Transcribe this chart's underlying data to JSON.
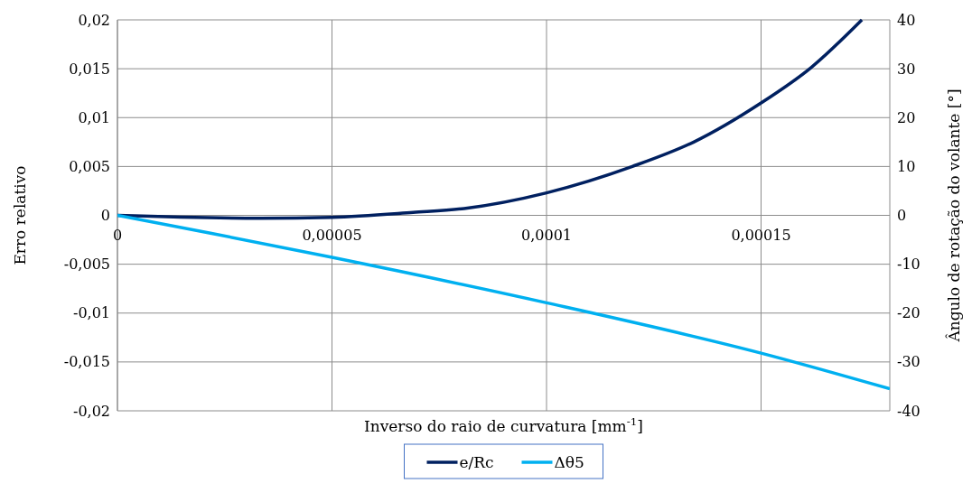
{
  "chart_data": {
    "type": "line",
    "xlabel": "Inverso do raio de curvatura [mm$^{-1}$]",
    "ylabel": "Erro relativo",
    "y2label": "Ângulo de rotação do volante [°]",
    "xlim": [
      0,
      0.00018
    ],
    "xticks": [
      0,
      {
        "value": 5e-05,
        "label": "0,00005"
      },
      {
        "value": 0.0001,
        "label": "0,0001"
      },
      {
        "value": 0.00015,
        "label": "0,00015"
      }
    ],
    "ylim": [
      -0.02,
      0.02
    ],
    "yticks": [
      {
        "value": -0.02,
        "label": "-0,02"
      },
      {
        "value": -0.015,
        "label": "-0,015"
      },
      {
        "value": -0.01,
        "label": "-0,01"
      },
      {
        "value": -0.005,
        "label": "-0,005"
      },
      0,
      {
        "value": 0.005,
        "label": "0,005"
      },
      {
        "value": 0.01,
        "label": "0,01"
      },
      {
        "value": 0.015,
        "label": "0,015"
      },
      {
        "value": 0.02,
        "label": "0,02"
      }
    ],
    "y2lim": [
      -40,
      40
    ],
    "y2ticks": [
      -40,
      -30,
      -20,
      -10,
      0,
      10,
      20,
      30,
      40
    ],
    "grid": true,
    "legend": "bottom",
    "marker": "none",
    "line_style": "solid",
    "series": [
      {
        "name": "e/Rc",
        "color": "#002060",
        "x": [
          0,
          3.33e-05,
          5e-05,
          6.89e-05,
          8.08e-05,
          0.0001,
          0.00012,
          0.0001343,
          0.00015,
          0.0001616,
          0.0001735
        ],
        "values": [
          0,
          -0.0003,
          -0.0002,
          0.0003,
          0.0007,
          0.0023,
          0.005,
          0.0075,
          0.0115,
          0.0151,
          0.02
        ]
      },
      {
        "name": "Δθ5",
        "color": "#00b0f0",
        "axis": "y2",
        "x": [
          0,
          2.14e-05,
          5e-05,
          0.0001,
          0.00015,
          0.00018
        ],
        "values": [
          0,
          -3.6,
          -8.6,
          -17.9,
          -28.2,
          -35.5
        ]
      }
    ]
  }
}
